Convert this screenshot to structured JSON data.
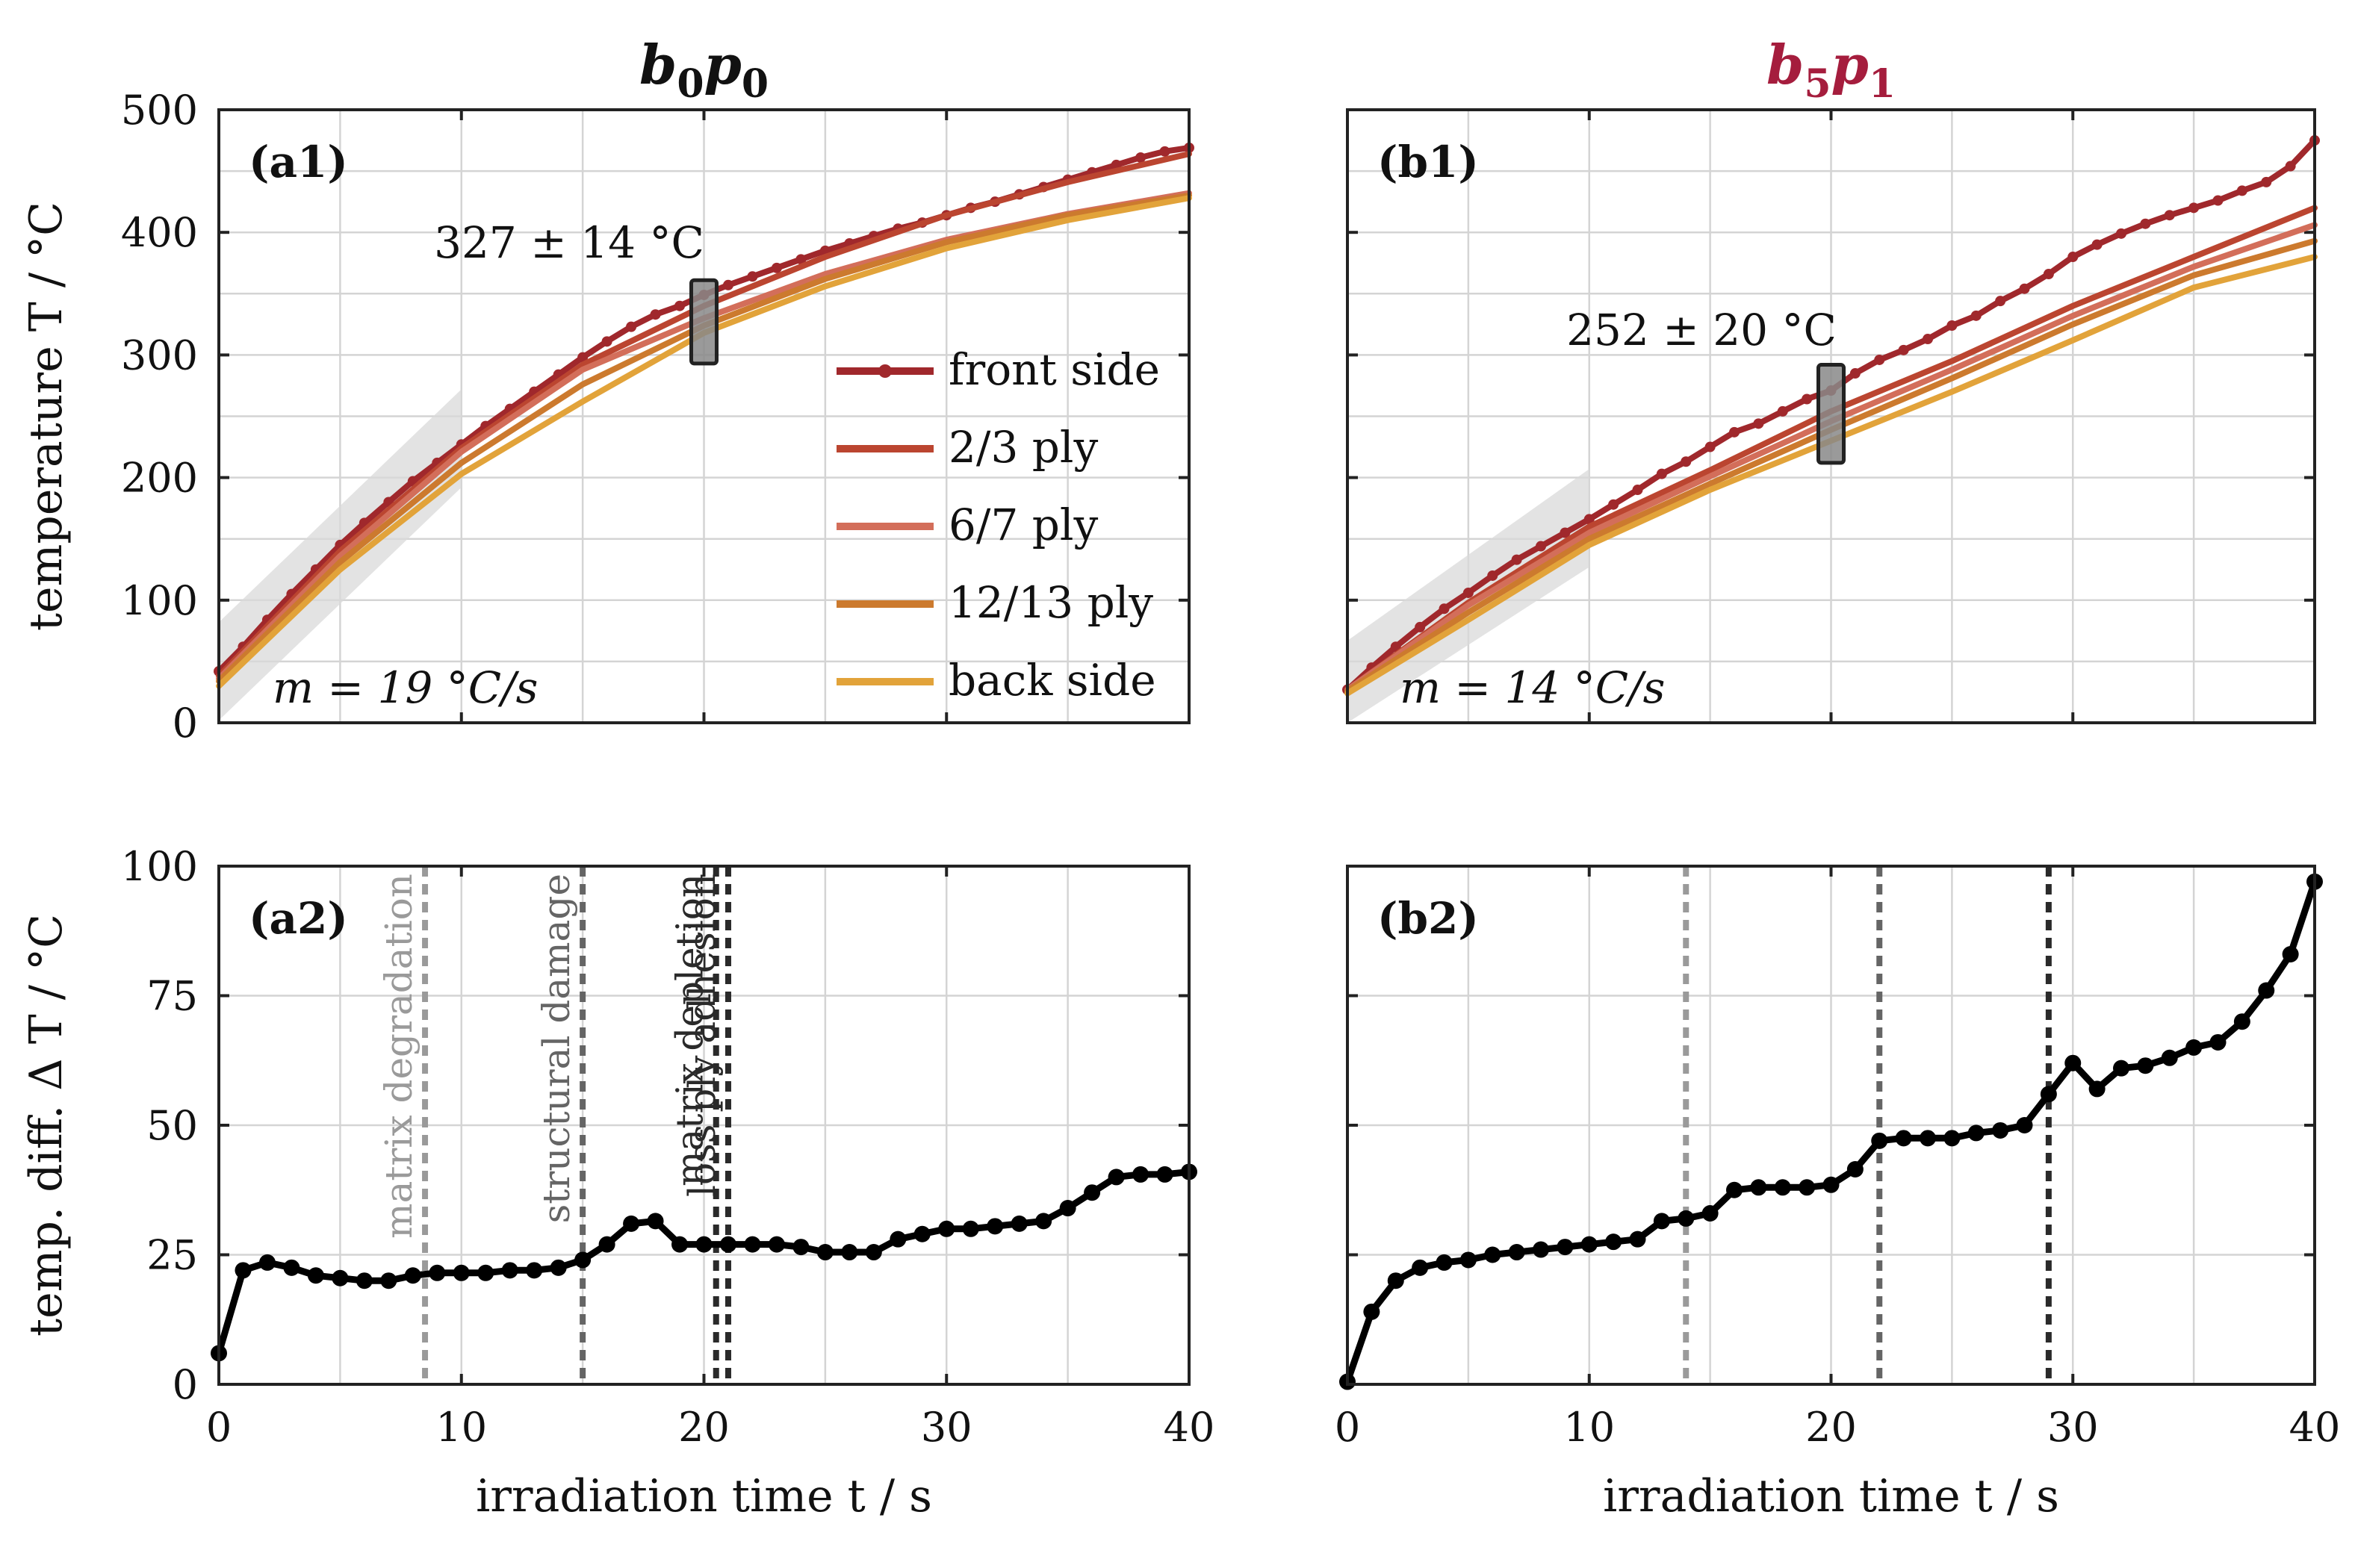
{
  "chart_data": [
    {
      "id": "a1",
      "type": "line",
      "panel_label": "(a1)",
      "title": "b0p0",
      "title_parts": [
        "b",
        "0",
        "p",
        "0"
      ],
      "title_color": "#111111",
      "xlabel": "",
      "ylabel": "temperature T / °C",
      "xlim": [
        0,
        40
      ],
      "ylim": [
        0,
        500
      ],
      "xticks": [
        "0",
        "10",
        "20",
        "30",
        "40"
      ],
      "yticks": [
        "0",
        "100",
        "200",
        "300",
        "400",
        "500"
      ],
      "grid": true,
      "legend_position": "center-right",
      "series": [
        {
          "name": "front side",
          "color": "#a0282c",
          "markers": true,
          "x": [
            0,
            1,
            2,
            3,
            4,
            5,
            6,
            7,
            8,
            9,
            10,
            11,
            12,
            13,
            14,
            15,
            16,
            17,
            18,
            19,
            20,
            21,
            22,
            23,
            24,
            25,
            26,
            27,
            28,
            29,
            30,
            31,
            32,
            33,
            34,
            35,
            36,
            37,
            38,
            39,
            40
          ],
          "y": [
            42,
            62,
            84,
            105,
            125,
            145,
            163,
            180,
            197,
            212,
            227,
            242,
            256,
            270,
            284,
            298,
            311,
            323,
            333,
            340,
            349,
            357,
            364,
            371,
            378,
            385,
            391,
            397,
            403,
            408,
            414,
            420,
            425,
            431,
            437,
            443,
            449,
            455,
            461,
            466,
            469
          ]
        },
        {
          "name": "2/3 ply",
          "color": "#bb4530",
          "markers": false,
          "x": [
            0,
            5,
            10,
            15,
            20,
            25,
            30,
            35,
            40
          ],
          "y": [
            38,
            140,
            224,
            292,
            340,
            380,
            414,
            441,
            464
          ]
        },
        {
          "name": "6/7 ply",
          "color": "#d36e5a",
          "markers": false,
          "x": [
            0,
            5,
            10,
            15,
            20,
            25,
            30,
            35,
            40
          ],
          "y": [
            36,
            136,
            221,
            288,
            330,
            366,
            394,
            415,
            432
          ]
        },
        {
          "name": "12/13 ply",
          "color": "#cc7a2e",
          "markers": false,
          "x": [
            0,
            5,
            10,
            15,
            20,
            25,
            30,
            35,
            40
          ],
          "y": [
            34,
            131,
            212,
            276,
            324,
            362,
            392,
            414,
            430
          ]
        },
        {
          "name": "back side",
          "color": "#e2a33a",
          "markers": false,
          "x": [
            0,
            5,
            10,
            15,
            20,
            25,
            30,
            35,
            40
          ],
          "y": [
            30,
            125,
            203,
            262,
            318,
            356,
            387,
            410,
            428
          ]
        }
      ],
      "annotations": [
        {
          "text": "327 ± 14 °C",
          "x": 20,
          "y": 327,
          "err": 14
        },
        {
          "text": "m = 19 °C/s",
          "slope": 19
        }
      ]
    },
    {
      "id": "b1",
      "type": "line",
      "panel_label": "(b1)",
      "title": "b5p1",
      "title_parts": [
        "b",
        "5",
        "p",
        "1"
      ],
      "title_color": "#a51d3d",
      "xlabel": "",
      "ylabel": "",
      "xlim": [
        0,
        40
      ],
      "ylim": [
        0,
        500
      ],
      "xticks": [
        "0",
        "10",
        "20",
        "30",
        "40"
      ],
      "yticks": [
        "0",
        "100",
        "200",
        "300",
        "400",
        "500"
      ],
      "grid": true,
      "series": [
        {
          "name": "front side",
          "color": "#a0282c",
          "markers": true,
          "x": [
            0,
            1,
            2,
            3,
            4,
            5,
            6,
            7,
            8,
            9,
            10,
            11,
            12,
            13,
            14,
            15,
            16,
            17,
            18,
            19,
            20,
            21,
            22,
            23,
            24,
            25,
            26,
            27,
            28,
            29,
            30,
            31,
            32,
            33,
            34,
            35,
            36,
            37,
            38,
            39,
            40
          ],
          "y": [
            27,
            45,
            62,
            78,
            93,
            106,
            120,
            133,
            144,
            155,
            166,
            178,
            190,
            203,
            213,
            225,
            237,
            244,
            254,
            264,
            271,
            285,
            296,
            304,
            313,
            324,
            332,
            344,
            354,
            366,
            380,
            390,
            399,
            407,
            414,
            420,
            426,
            434,
            441,
            454,
            475
          ]
        },
        {
          "name": "2/3 ply",
          "color": "#bb4530",
          "markers": false,
          "x": [
            0,
            5,
            10,
            15,
            20,
            25,
            30,
            35,
            40
          ],
          "y": [
            27,
            98,
            160,
            206,
            254,
            295,
            340,
            380,
            420
          ]
        },
        {
          "name": "6/7 ply",
          "color": "#d36e5a",
          "markers": false,
          "x": [
            0,
            5,
            10,
            15,
            20,
            25,
            30,
            35,
            40
          ],
          "y": [
            27,
            96,
            155,
            201,
            246,
            288,
            332,
            372,
            406
          ]
        },
        {
          "name": "12/13 ply",
          "color": "#cc7a2e",
          "markers": false,
          "x": [
            0,
            5,
            10,
            15,
            20,
            25,
            30,
            35,
            40
          ],
          "y": [
            26,
            90,
            150,
            195,
            239,
            281,
            325,
            365,
            393
          ]
        },
        {
          "name": "back side",
          "color": "#e2a33a",
          "markers": false,
          "x": [
            0,
            5,
            10,
            15,
            20,
            25,
            30,
            35,
            40
          ],
          "y": [
            24,
            84,
            145,
            190,
            230,
            270,
            312,
            355,
            380
          ]
        }
      ],
      "annotations": [
        {
          "text": "252 ± 20 °C",
          "x": 20,
          "y": 252,
          "err": 20
        },
        {
          "text": "m = 14 °C/s",
          "slope": 14
        }
      ]
    },
    {
      "id": "a2",
      "type": "line",
      "panel_label": "(a2)",
      "xlabel": "irradiation time t / s",
      "ylabel": "temp. diff. Δ T / °C",
      "xlim": [
        0,
        40
      ],
      "ylim": [
        0,
        100
      ],
      "xticks": [
        "0",
        "10",
        "20",
        "30",
        "40"
      ],
      "yticks": [
        "0",
        "25",
        "50",
        "75",
        "100"
      ],
      "grid": true,
      "series": [
        {
          "name": "ΔT",
          "color": "#000000",
          "markers": true,
          "x": [
            0,
            1,
            2,
            3,
            4,
            5,
            6,
            7,
            8,
            9,
            10,
            11,
            12,
            13,
            14,
            15,
            16,
            17,
            18,
            19,
            20,
            21,
            22,
            23,
            24,
            25,
            26,
            27,
            28,
            29,
            30,
            31,
            32,
            33,
            34,
            35,
            36,
            37,
            38,
            39,
            40
          ],
          "y": [
            6,
            22,
            23.5,
            22.5,
            21,
            20.5,
            20,
            20,
            21,
            21.5,
            21.5,
            21.5,
            22,
            22,
            22.5,
            24,
            27,
            31,
            31.5,
            27,
            27,
            27,
            27,
            27,
            26.5,
            25.5,
            25.5,
            25.5,
            28,
            29,
            30,
            30,
            30.5,
            31,
            31.5,
            34,
            37,
            40,
            40.5,
            40.5,
            41
          ]
        }
      ],
      "vlines": [
        {
          "x": 8.5,
          "label": "matrix degradation",
          "color": "#9a9a9a"
        },
        {
          "x": 15,
          "label": "structural damage",
          "color": "#656565"
        },
        {
          "x": 20.5,
          "label": "matrix depletion",
          "color": "#2a2a2a"
        },
        {
          "x": 21,
          "label": "loss ply adhesion",
          "color": "#2a2a2a"
        }
      ]
    },
    {
      "id": "b2",
      "type": "line",
      "panel_label": "(b2)",
      "xlabel": "irradiation time t / s",
      "ylabel": "",
      "xlim": [
        0,
        40
      ],
      "ylim": [
        0,
        100
      ],
      "xticks": [
        "0",
        "10",
        "20",
        "30",
        "40"
      ],
      "yticks": [
        "0",
        "25",
        "50",
        "75",
        "100"
      ],
      "grid": true,
      "series": [
        {
          "name": "ΔT",
          "color": "#000000",
          "markers": true,
          "x": [
            0,
            1,
            2,
            3,
            4,
            5,
            6,
            7,
            8,
            9,
            10,
            11,
            12,
            13,
            14,
            15,
            16,
            17,
            18,
            19,
            20,
            21,
            22,
            23,
            24,
            25,
            26,
            27,
            28,
            29,
            30,
            31,
            32,
            33,
            34,
            35,
            36,
            37,
            38,
            39,
            40
          ],
          "y": [
            0.5,
            14,
            20,
            22.5,
            23.5,
            24,
            25,
            25.5,
            26,
            26.5,
            27,
            27.5,
            28,
            31.5,
            32,
            33,
            37.5,
            38,
            38,
            38,
            38.5,
            41.5,
            47,
            47.5,
            47.5,
            47.5,
            48.5,
            49,
            50,
            56,
            62,
            57,
            61,
            61.5,
            63,
            65,
            66,
            70,
            76,
            83,
            97
          ]
        }
      ],
      "vlines": [
        {
          "x": 14,
          "color": "#9a9a9a"
        },
        {
          "x": 22,
          "color": "#656565"
        },
        {
          "x": 29,
          "color": "#2a2a2a"
        }
      ]
    }
  ]
}
